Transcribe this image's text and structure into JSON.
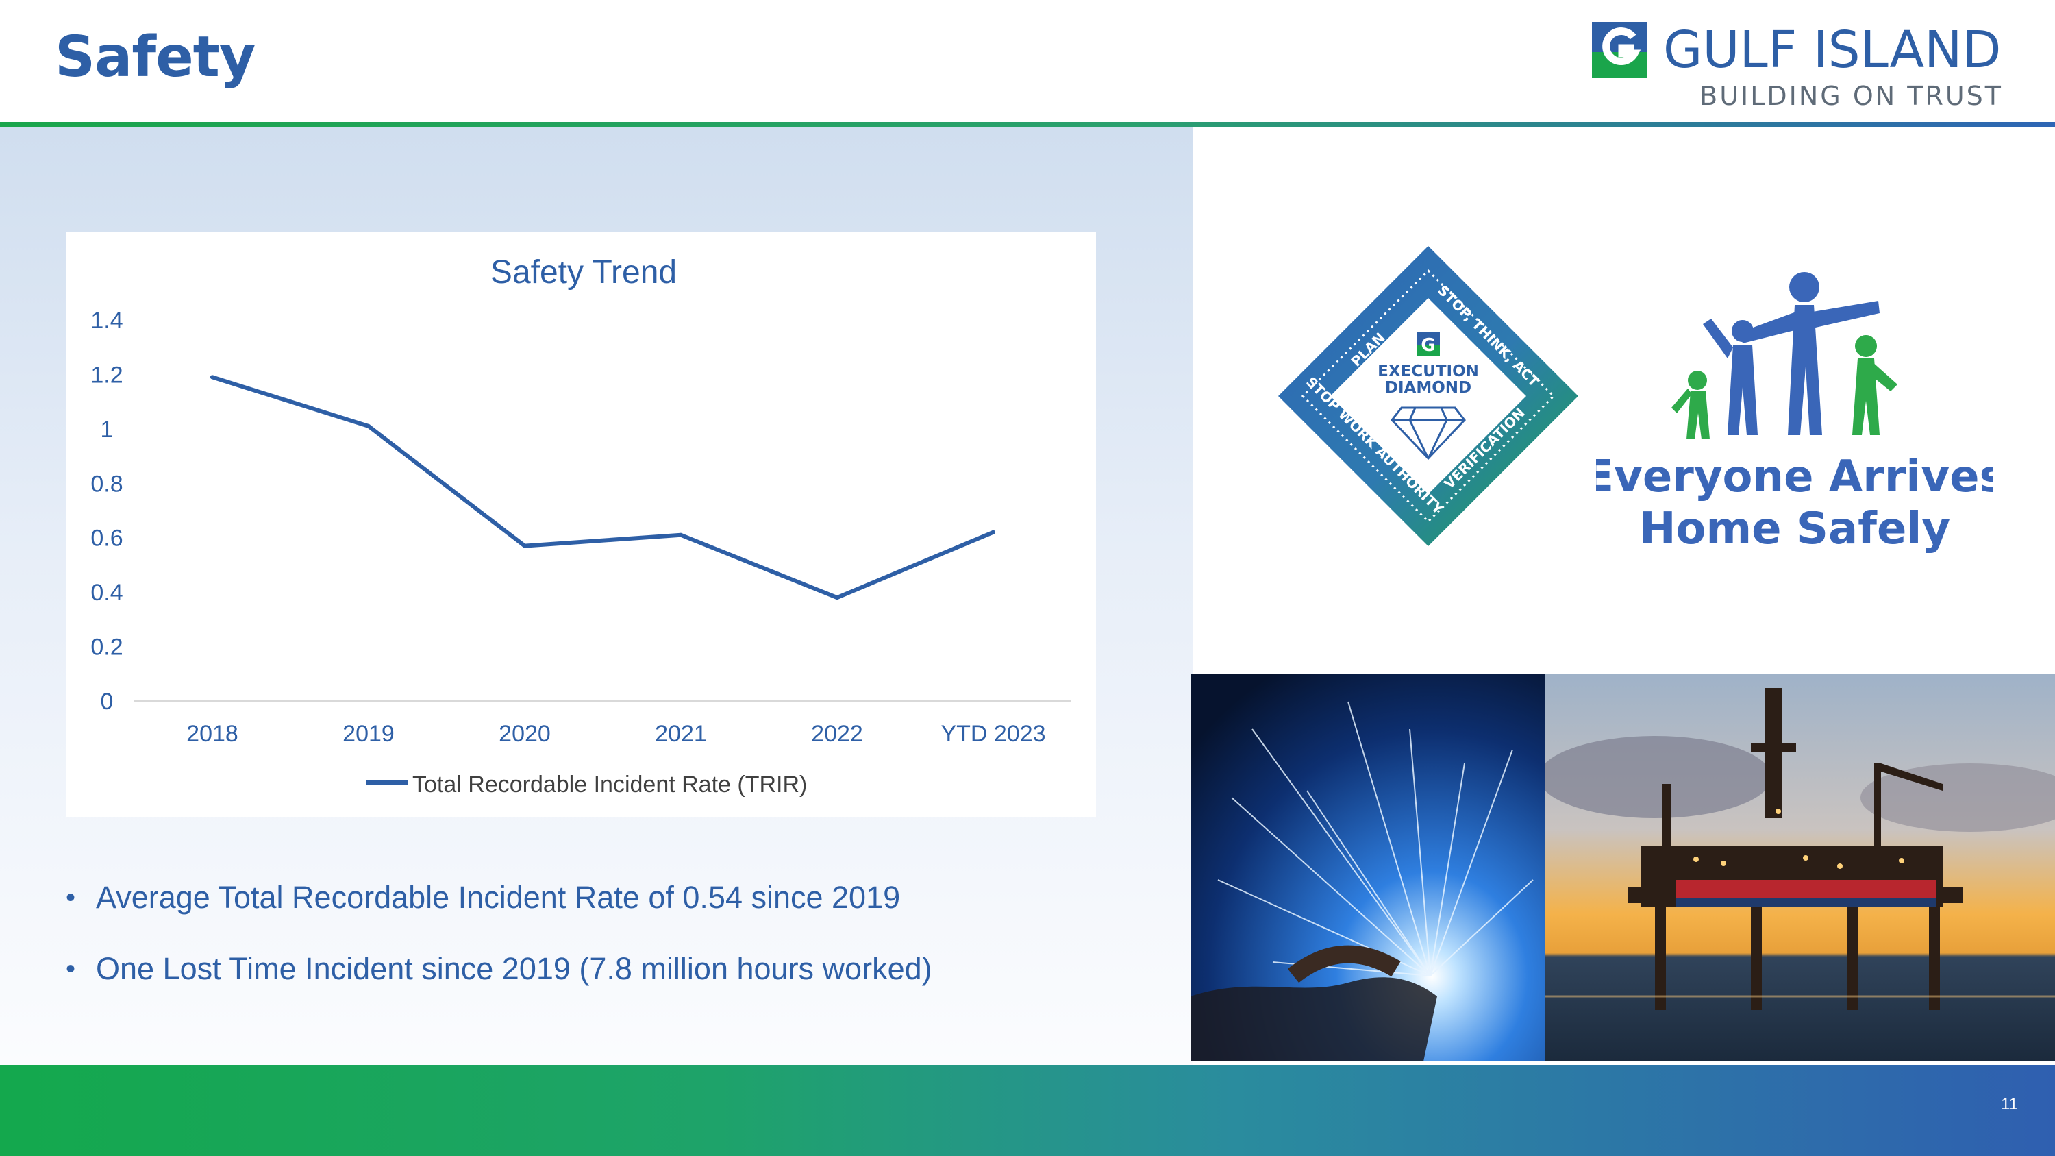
{
  "header": {
    "title": "Safety",
    "logo_name": "GULF ISLAND",
    "logo_tagline": "BUILDING ON TRUST"
  },
  "colors": {
    "brand_blue": "#2e5fa6",
    "brand_green": "#1aa54b"
  },
  "chart_data": {
    "type": "line",
    "title": "Safety Trend",
    "categories": [
      "2018",
      "2019",
      "2020",
      "2021",
      "2022",
      "YTD 2023"
    ],
    "series": [
      {
        "name": "Total Recordable Incident Rate (TRIR)",
        "values": [
          1.19,
          1.01,
          0.57,
          0.61,
          0.38,
          0.62
        ]
      }
    ],
    "yticks": [
      "0",
      "0.2",
      "0.4",
      "0.6",
      "0.8",
      "1",
      "1.2",
      "1.4"
    ],
    "ylim": [
      0,
      1.4
    ],
    "xlabel": "",
    "ylabel": "",
    "legend": "bottom"
  },
  "bullets": [
    "Average Total Recordable Incident Rate of 0.54 since 2019",
    "One Lost Time Incident since 2019 (7.8 million hours worked)"
  ],
  "badge": {
    "center_line1": "EXECUTION",
    "center_line2": "DIAMOND",
    "edge_plan": "PLAN",
    "edge_stop_think": "STOP, THINK, ACT",
    "edge_stop_work": "STOP WORK AUTHORITY",
    "edge_verification": "VERIFICATION"
  },
  "slogan": {
    "line1": "Everyone Arrives",
    "line2": "Home Safely"
  },
  "footer": {
    "page_number": "11"
  }
}
